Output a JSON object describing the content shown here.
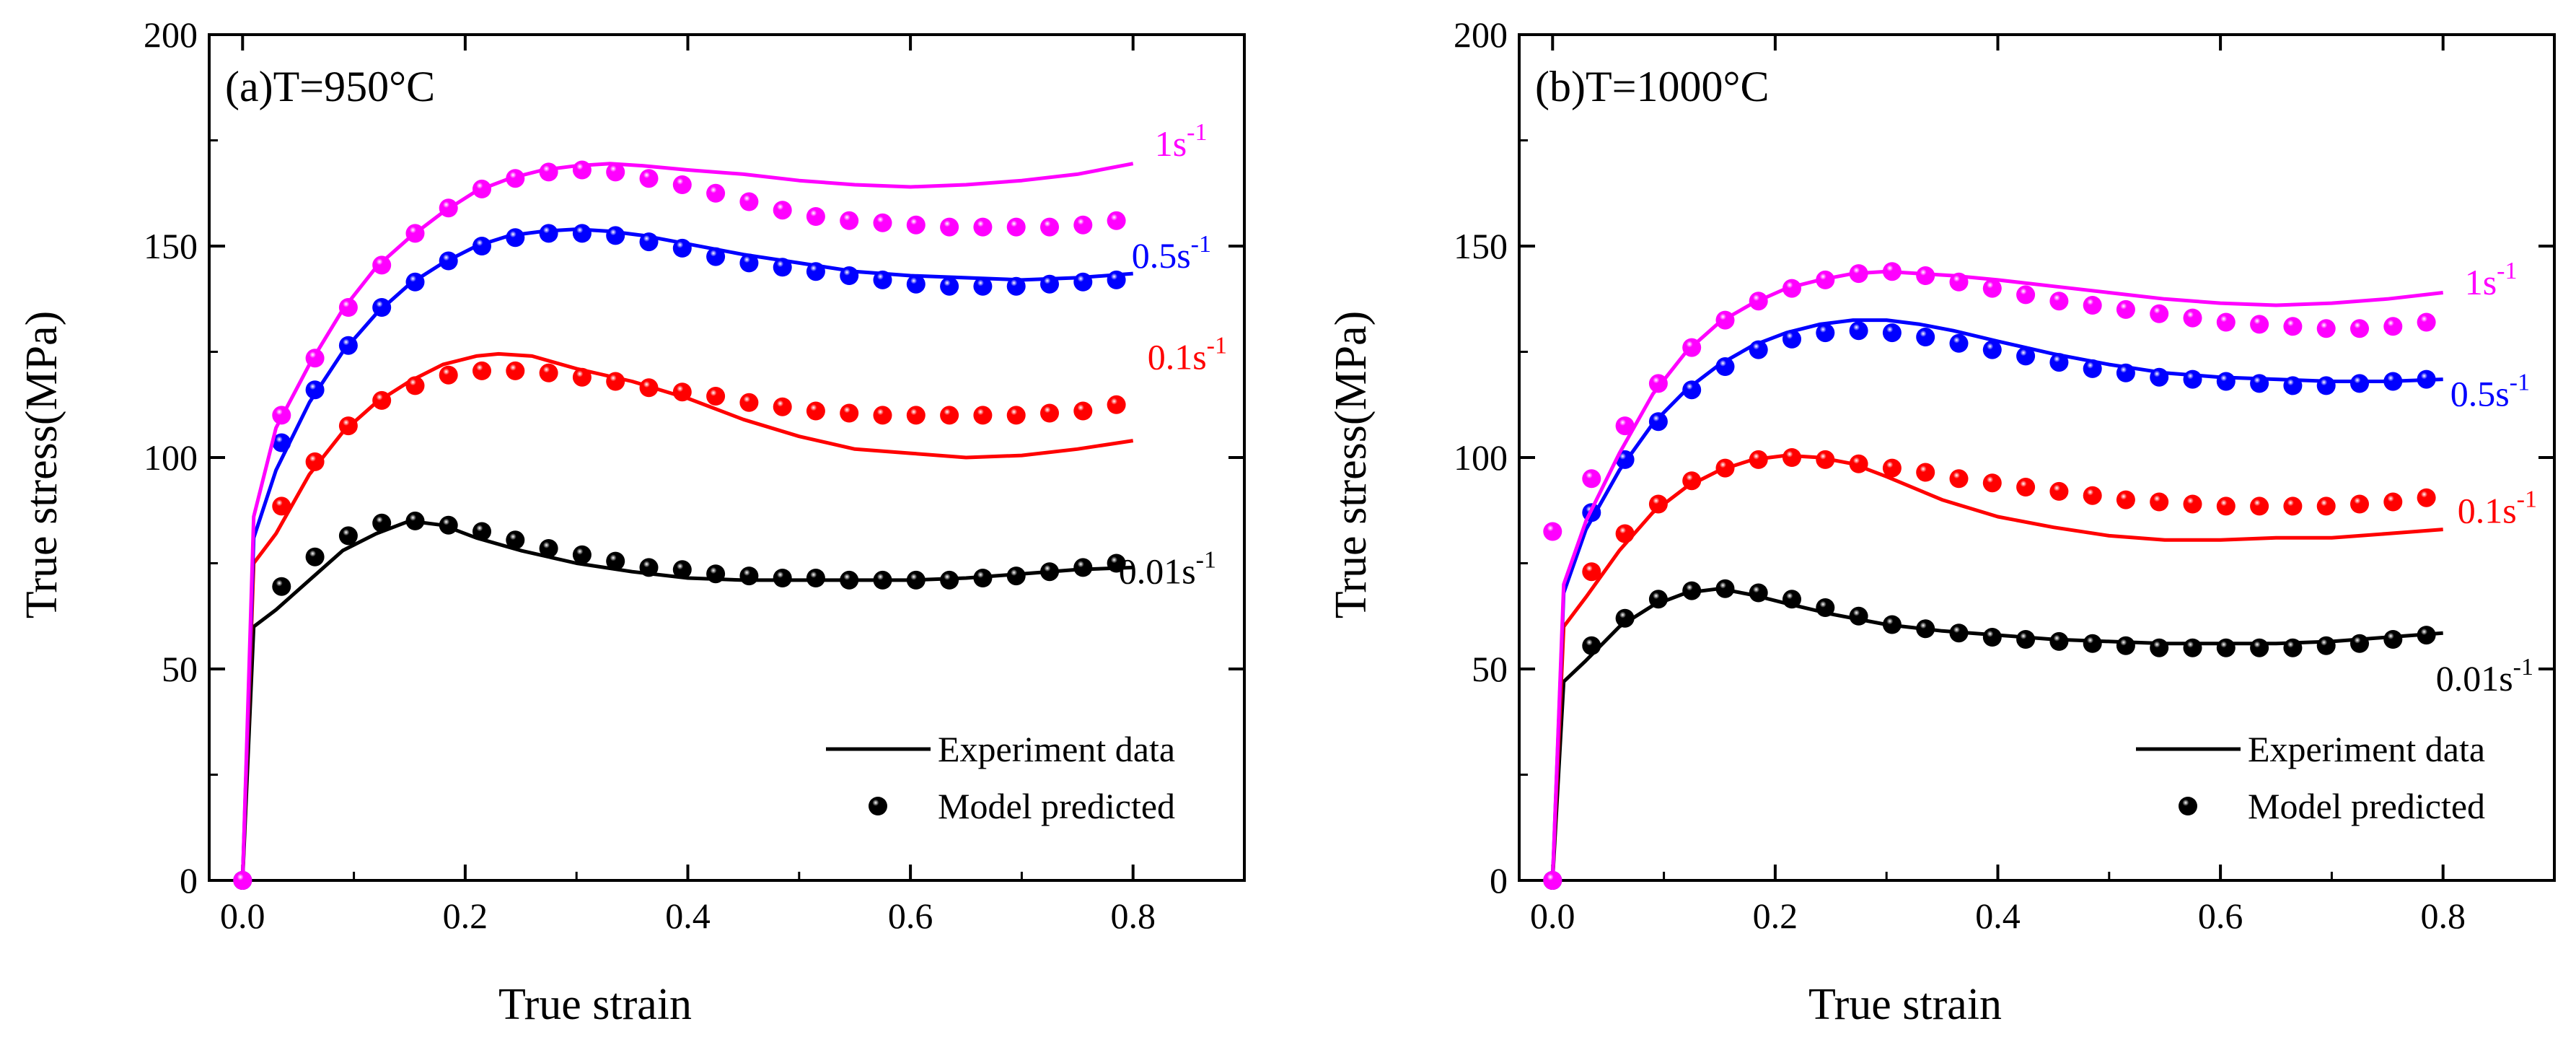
{
  "chart_data": [
    {
      "type": "line",
      "title": "(a)T=950°C",
      "xlabel": "True strain",
      "ylabel": "True stress(MPa)",
      "xlim": [
        -0.03,
        0.9
      ],
      "ylim": [
        0,
        200
      ],
      "xticks": [
        0.0,
        0.2,
        0.4,
        0.6,
        0.8
      ],
      "yticks": [
        0,
        50,
        100,
        150,
        200
      ],
      "xtick_labels": [
        "0.0",
        "0.2",
        "0.4",
        "0.6",
        "0.8"
      ],
      "ytick_labels": [
        "0",
        "50",
        "100",
        "150",
        "200"
      ],
      "legend": {
        "position": "bottom-right",
        "line_label": "Experiment data",
        "marker_label": "Model predicted"
      },
      "series": [
        {
          "name": "0.01s-1",
          "label_main": "0.01s",
          "label_sup": "-1",
          "color": "#000000",
          "experiment": {
            "x": [
              0,
              0.01,
              0.03,
              0.06,
              0.09,
              0.12,
              0.15,
              0.18,
              0.21,
              0.25,
              0.3,
              0.35,
              0.4,
              0.45,
              0.5,
              0.55,
              0.6,
              0.65,
              0.7,
              0.75,
              0.8
            ],
            "y": [
              0,
              60,
              64,
              71,
              78,
              82,
              85,
              84,
              81,
              78,
              75,
              73,
              71.5,
              71,
              71,
              71,
              71,
              71.5,
              72.5,
              73.5,
              74
            ]
          },
          "model": {
            "x": [
              0.0,
              0.035,
              0.065,
              0.095,
              0.125,
              0.155,
              0.185,
              0.215,
              0.245,
              0.275,
              0.305,
              0.335,
              0.365,
              0.395,
              0.425,
              0.455,
              0.485,
              0.515,
              0.545,
              0.575,
              0.605,
              0.635,
              0.665,
              0.695,
              0.725,
              0.755,
              0.785
            ],
            "y": [
              0,
              69.5,
              76.5,
              81.5,
              84.5,
              85,
              84,
              82.5,
              80.5,
              78.5,
              77,
              75.5,
              74,
              73.5,
              72.5,
              72,
              71.5,
              71.5,
              71,
              71,
              71,
              71,
              71.5,
              72,
              73,
              74,
              75
            ]
          }
        },
        {
          "name": "0.1s-1",
          "label_main": "0.1s",
          "label_sup": "-1",
          "color": "#ff0000",
          "experiment": {
            "x": [
              0,
              0.01,
              0.03,
              0.06,
              0.09,
              0.12,
              0.15,
              0.18,
              0.21,
              0.23,
              0.26,
              0.3,
              0.35,
              0.4,
              0.45,
              0.5,
              0.55,
              0.6,
              0.65,
              0.7,
              0.75,
              0.8
            ],
            "y": [
              0,
              75,
              82,
              96,
              106,
              113,
              118,
              122,
              124,
              124.5,
              124,
              121,
              118,
              114,
              109,
              105,
              102,
              101,
              100,
              100.5,
              102,
              104
            ]
          },
          "model": {
            "x": [
              0.0,
              0.035,
              0.065,
              0.095,
              0.125,
              0.155,
              0.185,
              0.215,
              0.245,
              0.275,
              0.305,
              0.335,
              0.365,
              0.395,
              0.425,
              0.455,
              0.485,
              0.515,
              0.545,
              0.575,
              0.605,
              0.635,
              0.665,
              0.695,
              0.725,
              0.755,
              0.785
            ],
            "y": [
              0,
              88.5,
              99,
              107.5,
              113.5,
              117,
              119.5,
              120.5,
              120.5,
              120,
              119,
              118,
              116.5,
              115.5,
              114.5,
              113,
              112,
              111,
              110.5,
              110,
              110,
              110,
              110,
              110,
              110.5,
              111,
              112.5
            ]
          }
        },
        {
          "name": "0.5s-1",
          "label_main": "0.5s",
          "label_sup": "-1",
          "color": "#0000ff",
          "experiment": {
            "x": [
              0,
              0.01,
              0.03,
              0.06,
              0.09,
              0.12,
              0.15,
              0.18,
              0.21,
              0.24,
              0.27,
              0.3,
              0.33,
              0.36,
              0.4,
              0.45,
              0.5,
              0.55,
              0.6,
              0.65,
              0.7,
              0.75,
              0.8
            ],
            "y": [
              0,
              81,
              97,
              113,
              125,
              134,
              141,
              146,
              150,
              152.5,
              153.5,
              154,
              153.5,
              152.5,
              150.5,
              148,
              146,
              144,
              143,
              142.5,
              142,
              142.5,
              143.5
            ]
          },
          "model": {
            "x": [
              0.0,
              0.035,
              0.065,
              0.095,
              0.125,
              0.155,
              0.185,
              0.215,
              0.245,
              0.275,
              0.305,
              0.335,
              0.365,
              0.395,
              0.425,
              0.455,
              0.485,
              0.515,
              0.545,
              0.575,
              0.605,
              0.635,
              0.665,
              0.695,
              0.725,
              0.755,
              0.785
            ],
            "y": [
              0,
              103.5,
              116,
              126.5,
              135.5,
              141.5,
              146.5,
              150,
              152,
              153,
              153,
              152.5,
              151,
              149.5,
              147.5,
              146,
              145,
              144,
              143,
              142,
              141,
              140.5,
              140.5,
              140.5,
              141,
              141.5,
              142
            ]
          }
        },
        {
          "name": "1s-1",
          "label_main": "1s",
          "label_sup": "-1",
          "color": "#ff00ff",
          "experiment": {
            "x": [
              0,
              0.01,
              0.03,
              0.06,
              0.09,
              0.12,
              0.15,
              0.18,
              0.21,
              0.24,
              0.27,
              0.3,
              0.33,
              0.36,
              0.4,
              0.45,
              0.5,
              0.55,
              0.6,
              0.65,
              0.7,
              0.75,
              0.8
            ],
            "y": [
              0,
              86,
              107,
              122,
              135,
              145,
              152,
              158,
              163,
              166,
              168,
              169,
              169.5,
              169,
              168,
              167,
              165.5,
              164.5,
              164,
              164.5,
              165.5,
              167,
              169.5
            ]
          },
          "model": {
            "x": [
              0.0,
              0.035,
              0.065,
              0.095,
              0.125,
              0.155,
              0.185,
              0.215,
              0.245,
              0.275,
              0.305,
              0.335,
              0.365,
              0.395,
              0.425,
              0.455,
              0.485,
              0.515,
              0.545,
              0.575,
              0.605,
              0.635,
              0.665,
              0.695,
              0.725,
              0.755,
              0.785
            ],
            "y": [
              0,
              110,
              123.5,
              135.5,
              145.5,
              153,
              159,
              163.5,
              166,
              167.5,
              168,
              167.5,
              166,
              164.5,
              162.5,
              160.5,
              158.5,
              157,
              156,
              155.5,
              155,
              154.5,
              154.5,
              154.5,
              154.5,
              155,
              156
            ]
          }
        }
      ]
    },
    {
      "type": "line",
      "title": "(b)T=1000°C",
      "xlabel": "True strain",
      "ylabel": "True stress(MPa)",
      "xlim": [
        -0.03,
        0.9
      ],
      "ylim": [
        0,
        200
      ],
      "xticks": [
        0.0,
        0.2,
        0.4,
        0.6,
        0.8
      ],
      "yticks": [
        0,
        50,
        100,
        150,
        200
      ],
      "xtick_labels": [
        "0.0",
        "0.2",
        "0.4",
        "0.6",
        "0.8"
      ],
      "ytick_labels": [
        "0",
        "50",
        "100",
        "150",
        "200"
      ],
      "legend": {
        "position": "bottom-right",
        "line_label": "Experiment data",
        "marker_label": "Model predicted"
      },
      "series": [
        {
          "name": "0.01s-1",
          "label_main": "0.01s",
          "label_sup": "-1",
          "color": "#000000",
          "experiment": {
            "x": [
              0,
              0.01,
              0.03,
              0.06,
              0.09,
              0.12,
              0.15,
              0.18,
              0.21,
              0.25,
              0.3,
              0.35,
              0.4,
              0.45,
              0.5,
              0.55,
              0.6,
              0.65,
              0.7,
              0.75,
              0.8
            ],
            "y": [
              0,
              47,
              52,
              60,
              65,
              68,
              69,
              67.5,
              65.5,
              63,
              60.5,
              59,
              58,
              57,
              56.5,
              56,
              56,
              56,
              56.5,
              57.5,
              58.5
            ]
          },
          "model": {
            "x": [
              0.0,
              0.035,
              0.065,
              0.095,
              0.125,
              0.155,
              0.185,
              0.215,
              0.245,
              0.275,
              0.305,
              0.335,
              0.365,
              0.395,
              0.425,
              0.455,
              0.485,
              0.515,
              0.545,
              0.575,
              0.605,
              0.635,
              0.665,
              0.695,
              0.725,
              0.755,
              0.785
            ],
            "y": [
              0,
              55.5,
              62,
              66.5,
              68.5,
              69,
              68,
              66.5,
              64.5,
              62.5,
              60.5,
              59.5,
              58.5,
              57.5,
              57,
              56.5,
              56,
              55.5,
              55,
              55,
              55,
              55,
              55,
              55.5,
              56,
              57,
              58
            ]
          }
        },
        {
          "name": "0.1s-1",
          "label_main": "0.1s",
          "label_sup": "-1",
          "color": "#ff0000",
          "experiment": {
            "x": [
              0,
              0.01,
              0.03,
              0.06,
              0.09,
              0.12,
              0.15,
              0.18,
              0.21,
              0.24,
              0.27,
              0.3,
              0.35,
              0.4,
              0.45,
              0.5,
              0.55,
              0.6,
              0.65,
              0.7,
              0.75,
              0.8
            ],
            "y": [
              0,
              60,
              67,
              78,
              87,
              93,
              97,
              99.5,
              100.5,
              100,
              98.5,
              95.5,
              90,
              86,
              83.5,
              81.5,
              80.5,
              80.5,
              81,
              81,
              82,
              83
            ]
          },
          "model": {
            "x": [
              0.0,
              0.035,
              0.065,
              0.095,
              0.125,
              0.155,
              0.185,
              0.215,
              0.245,
              0.275,
              0.305,
              0.335,
              0.365,
              0.395,
              0.425,
              0.455,
              0.485,
              0.515,
              0.545,
              0.575,
              0.605,
              0.635,
              0.665,
              0.695,
              0.725,
              0.755,
              0.785
            ],
            "y": [
              0,
              73,
              82,
              89,
              94.5,
              97.5,
              99.5,
              100,
              99.5,
              98.5,
              97.5,
              96.5,
              95,
              94,
              93,
              92,
              91,
              90,
              89.5,
              89,
              88.5,
              88.5,
              88.5,
              88.5,
              89,
              89.5,
              90.5
            ]
          }
        },
        {
          "name": "0.5s-1",
          "label_main": "0.5s",
          "label_sup": "-1",
          "color": "#0000ff",
          "experiment": {
            "x": [
              0,
              0.01,
              0.03,
              0.06,
              0.09,
              0.12,
              0.15,
              0.18,
              0.21,
              0.24,
              0.27,
              0.3,
              0.33,
              0.36,
              0.4,
              0.45,
              0.5,
              0.55,
              0.6,
              0.65,
              0.7,
              0.75,
              0.8
            ],
            "y": [
              0,
              68,
              83,
              97,
              108,
              116,
              122,
              126.5,
              129.5,
              131.5,
              132.5,
              132.5,
              131.5,
              130,
              127.5,
              124.5,
              122,
              120,
              119,
              118.5,
              118,
              118,
              118.5
            ]
          },
          "model": {
            "x": [
              0.0,
              0.035,
              0.065,
              0.095,
              0.125,
              0.155,
              0.185,
              0.215,
              0.245,
              0.275,
              0.305,
              0.335,
              0.365,
              0.395,
              0.425,
              0.455,
              0.485,
              0.515,
              0.545,
              0.575,
              0.605,
              0.635,
              0.665,
              0.695,
              0.725,
              0.755,
              0.785
            ],
            "y": [
              0,
              87,
              99.5,
              108.5,
              116,
              121.5,
              125.5,
              128,
              129.5,
              130,
              129.5,
              128.5,
              127,
              125.5,
              124,
              122.5,
              121,
              120,
              119,
              118.5,
              118,
              117.5,
              117,
              117,
              117.5,
              118,
              118.5
            ]
          }
        },
        {
          "name": "1s-1",
          "label_main": "1s",
          "label_sup": "-1",
          "color": "#ff00ff",
          "experiment": {
            "x": [
              0,
              0.01,
              0.03,
              0.06,
              0.09,
              0.12,
              0.15,
              0.18,
              0.21,
              0.24,
              0.27,
              0.3,
              0.33,
              0.36,
              0.4,
              0.45,
              0.5,
              0.55,
              0.6,
              0.65,
              0.7,
              0.75,
              0.8
            ],
            "y": [
              0,
              70,
              85,
              101,
              115,
              125,
              132,
              136.5,
              140,
              142,
              143.5,
              144,
              143.5,
              143,
              142,
              140.5,
              139,
              137.5,
              136.5,
              136,
              136.5,
              137.5,
              139
            ]
          },
          "model": {
            "x": [
              0.0,
              0.0,
              0.035,
              0.065,
              0.095,
              0.125,
              0.155,
              0.185,
              0.215,
              0.245,
              0.275,
              0.305,
              0.335,
              0.365,
              0.395,
              0.425,
              0.455,
              0.485,
              0.515,
              0.545,
              0.575,
              0.605,
              0.635,
              0.665,
              0.695,
              0.725,
              0.755,
              0.785
            ],
            "y": [
              82.5,
              0,
              95,
              107.5,
              117.5,
              126,
              132.5,
              137,
              140,
              142,
              143.5,
              144,
              143,
              141.5,
              140,
              138.5,
              137,
              136,
              135,
              134,
              133,
              132,
              131.5,
              131,
              130.5,
              130.5,
              131,
              132
            ]
          }
        }
      ]
    }
  ]
}
